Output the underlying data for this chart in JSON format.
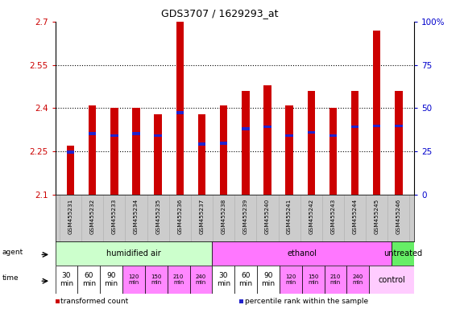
{
  "title": "GDS3707 / 1629293_at",
  "samples": [
    "GSM455231",
    "GSM455232",
    "GSM455233",
    "GSM455234",
    "GSM455235",
    "GSM455236",
    "GSM455237",
    "GSM455238",
    "GSM455239",
    "GSM455240",
    "GSM455241",
    "GSM455242",
    "GSM455243",
    "GSM455244",
    "GSM455245",
    "GSM455246"
  ],
  "transformed_count": [
    2.27,
    2.41,
    2.4,
    2.4,
    2.38,
    2.7,
    2.38,
    2.41,
    2.46,
    2.48,
    2.41,
    2.46,
    2.4,
    2.46,
    2.67,
    2.46
  ],
  "percentile_rank": [
    2.248,
    2.312,
    2.305,
    2.312,
    2.305,
    2.385,
    2.275,
    2.278,
    2.328,
    2.335,
    2.305,
    2.316,
    2.305,
    2.335,
    2.338,
    2.338
  ],
  "ylim_left": [
    2.1,
    2.7
  ],
  "ylim_right": [
    0,
    100
  ],
  "yticks_left": [
    2.1,
    2.25,
    2.4,
    2.55,
    2.7
  ],
  "ytick_labels_left": [
    "2.1",
    "2.25",
    "2.4",
    "2.55",
    "2.7"
  ],
  "yticks_right": [
    0,
    25,
    50,
    75,
    100
  ],
  "ytick_labels_right": [
    "0",
    "25",
    "50",
    "75",
    "100%"
  ],
  "bar_color": "#cc0000",
  "percentile_color": "#2222cc",
  "base_value": 2.1,
  "agent_groups": [
    {
      "label": "humidified air",
      "start": 0,
      "end": 7,
      "color": "#ccffcc"
    },
    {
      "label": "ethanol",
      "start": 7,
      "end": 15,
      "color": "#ff77ff"
    },
    {
      "label": "untreated",
      "start": 15,
      "end": 16,
      "color": "#66ee66"
    }
  ],
  "time_labels": [
    "30\nmin",
    "60\nmin",
    "90\nmin",
    "120\nmin",
    "150\nmin",
    "210\nmin",
    "240\nmin",
    "30\nmin",
    "60\nmin",
    "90\nmin",
    "120\nmin",
    "150\nmin",
    "210\nmin",
    "240\nmin"
  ],
  "time_colors_white": [
    0,
    1,
    2,
    7,
    8,
    9
  ],
  "time_colors_pink": [
    3,
    4,
    5,
    6,
    10,
    11,
    12,
    13
  ],
  "control_color": "#ffccff",
  "legend_items": [
    {
      "color": "#cc0000",
      "label": "transformed count"
    },
    {
      "color": "#2222cc",
      "label": "percentile rank within the sample"
    }
  ],
  "bg_color": "#ffffff",
  "sample_bg_color": "#cccccc",
  "bar_width": 0.35
}
